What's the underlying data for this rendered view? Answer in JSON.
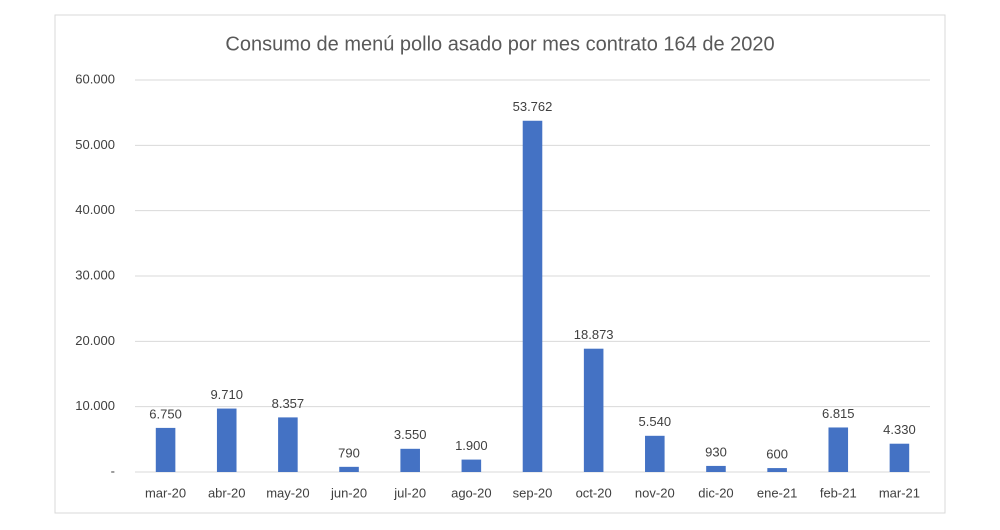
{
  "chart_data": {
    "type": "bar",
    "title": "Consumo de menú pollo asado por mes contrato 164 de 2020",
    "categories": [
      "mar-20",
      "abr-20",
      "may-20",
      "jun-20",
      "jul-20",
      "ago-20",
      "sep-20",
      "oct-20",
      "nov-20",
      "dic-20",
      "ene-21",
      "feb-21",
      "mar-21"
    ],
    "values": [
      6750,
      9710,
      8357,
      790,
      3550,
      1900,
      53762,
      18873,
      5540,
      930,
      600,
      6815,
      4330
    ],
    "value_labels": [
      "6.750",
      "9.710",
      "8.357",
      "790",
      "3.550",
      "1.900",
      "53.762",
      "18.873",
      "5.540",
      "930",
      "600",
      "6.815",
      "4.330"
    ],
    "color": "#4472c4",
    "ylim": [
      0,
      60000
    ],
    "yticks": [
      {
        "value": 0,
        "label": "-"
      },
      {
        "value": 10000,
        "label": "10.000"
      },
      {
        "value": 20000,
        "label": "20.000"
      },
      {
        "value": 30000,
        "label": "30.000"
      },
      {
        "value": 40000,
        "label": "40.000"
      },
      {
        "value": 50000,
        "label": "50.000"
      },
      {
        "value": 60000,
        "label": "60.000"
      }
    ],
    "grid": true
  }
}
